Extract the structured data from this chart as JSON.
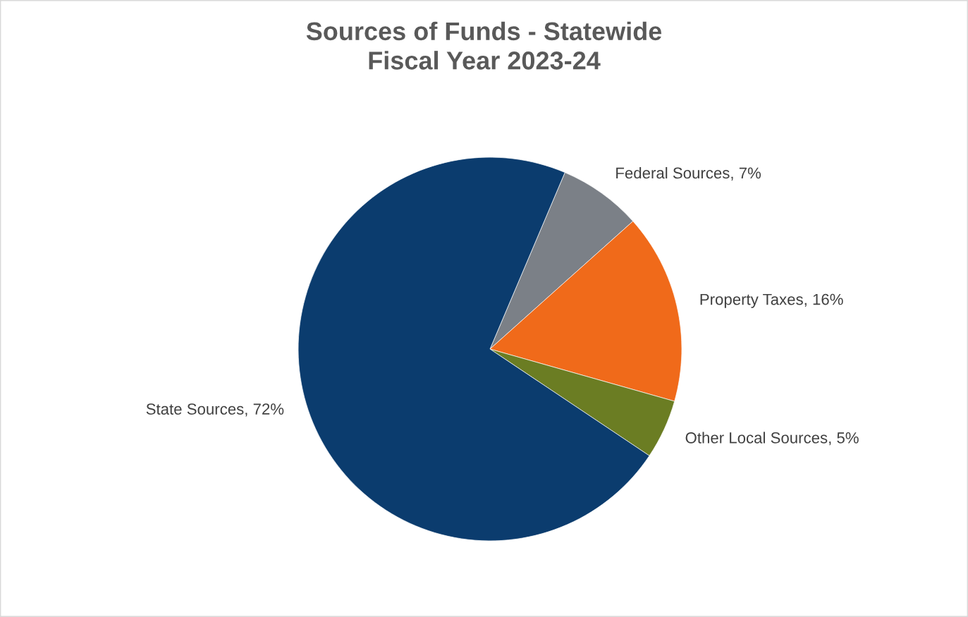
{
  "chart_data": {
    "type": "pie",
    "title": "Sources of Funds - Statewide\nFiscal Year 2023-24",
    "categories": [
      "Federal Sources",
      "Property Taxes",
      "Other Local Sources",
      "State Sources"
    ],
    "values": [
      7,
      16,
      5,
      72
    ],
    "value_labels": [
      "7%",
      "16%",
      "5%",
      "72%"
    ],
    "colors": [
      "#7b8087",
      "#f06a1a",
      "#6b7d23",
      "#0b3c6e"
    ]
  }
}
